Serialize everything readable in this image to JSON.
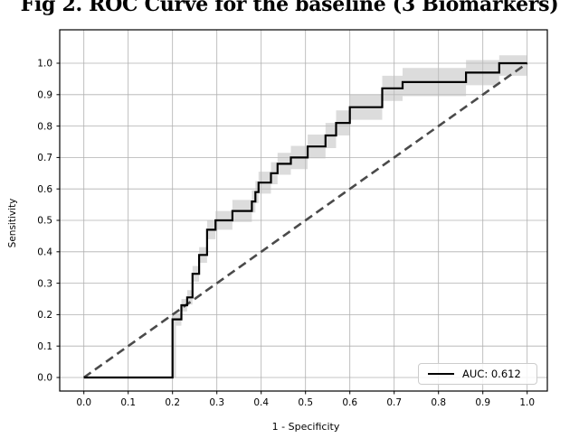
{
  "figure": {
    "title": "Fig 2. ROC Curve for the baseline (3 Biomarkers)"
  },
  "axes": {
    "xlabel": "1 - Specificity",
    "ylabel": "Sensitivity",
    "xtick_labels": [
      "0.0",
      "0.1",
      "0.2",
      "0.3",
      "0.4",
      "0.5",
      "0.6",
      "0.7",
      "0.8",
      "0.9",
      "1.0"
    ],
    "ytick_labels": [
      "0.0",
      "0.1",
      "0.2",
      "0.3",
      "0.4",
      "0.5",
      "0.6",
      "0.7",
      "0.8",
      "0.9",
      "1.0"
    ]
  },
  "legend": {
    "auc_label": "AUC: 0.612"
  },
  "colors": {
    "curve": "#000000",
    "band": "#c0c0c0",
    "diagonal": "#4a4a4a",
    "grid": "#b0b0b0",
    "spine": "#000000"
  },
  "chart_data": {
    "type": "line",
    "subtype": "roc-step-curve",
    "title": "Fig 2. ROC Curve for the baseline (3 Biomarkers)",
    "xlabel": "1 - Specificity",
    "ylabel": "Sensitivity",
    "xlim": [
      -0.055,
      1.045
    ],
    "ylim": [
      -0.043,
      1.105
    ],
    "grid": true,
    "legend_position": "lower right",
    "auc": 0.612,
    "xticks": [
      0,
      0.1,
      0.2,
      0.3,
      0.4,
      0.5,
      0.6,
      0.7,
      0.8,
      0.9,
      1.0
    ],
    "yticks": [
      0,
      0.1,
      0.2,
      0.3,
      0.4,
      0.5,
      0.6,
      0.7,
      0.8,
      0.9,
      1.0
    ],
    "series": [
      {
        "name": "AUC: 0.612",
        "style": "step",
        "color": "#000000",
        "points": [
          [
            0,
            0
          ],
          [
            0.2,
            0
          ],
          [
            0.2,
            0.185
          ],
          [
            0.22,
            0.185
          ],
          [
            0.22,
            0.23
          ],
          [
            0.233,
            0.23
          ],
          [
            0.233,
            0.255
          ],
          [
            0.245,
            0.255
          ],
          [
            0.245,
            0.33
          ],
          [
            0.26,
            0.33
          ],
          [
            0.26,
            0.39
          ],
          [
            0.278,
            0.39
          ],
          [
            0.278,
            0.47
          ],
          [
            0.297,
            0.47
          ],
          [
            0.297,
            0.5
          ],
          [
            0.335,
            0.5
          ],
          [
            0.335,
            0.53
          ],
          [
            0.379,
            0.53
          ],
          [
            0.379,
            0.56
          ],
          [
            0.387,
            0.56
          ],
          [
            0.387,
            0.59
          ],
          [
            0.394,
            0.59
          ],
          [
            0.394,
            0.62
          ],
          [
            0.422,
            0.62
          ],
          [
            0.422,
            0.65
          ],
          [
            0.437,
            0.65
          ],
          [
            0.437,
            0.68
          ],
          [
            0.467,
            0.68
          ],
          [
            0.467,
            0.7
          ],
          [
            0.505,
            0.7
          ],
          [
            0.505,
            0.735
          ],
          [
            0.545,
            0.735
          ],
          [
            0.545,
            0.77
          ],
          [
            0.569,
            0.77
          ],
          [
            0.569,
            0.81
          ],
          [
            0.6,
            0.81
          ],
          [
            0.6,
            0.86
          ],
          [
            0.673,
            0.86
          ],
          [
            0.673,
            0.92
          ],
          [
            0.719,
            0.92
          ],
          [
            0.719,
            0.94
          ],
          [
            0.862,
            0.94
          ],
          [
            0.862,
            0.97
          ],
          [
            0.937,
            0.97
          ],
          [
            0.937,
            1.0
          ],
          [
            1.0,
            1.0
          ]
        ]
      },
      {
        "name": "chance-diagonal",
        "style": "dashed",
        "color": "#4a4a4a",
        "points": [
          [
            0,
            0
          ],
          [
            1,
            1
          ]
        ]
      },
      {
        "name": "confidence-band",
        "style": "band",
        "color": "#c0c0c0",
        "opacity": 0.55,
        "upper": [
          [
            0.2,
            0
          ],
          [
            0.2,
            0.205
          ],
          [
            0.22,
            0.205
          ],
          [
            0.22,
            0.25
          ],
          [
            0.233,
            0.25
          ],
          [
            0.233,
            0.278
          ],
          [
            0.245,
            0.278
          ],
          [
            0.245,
            0.355
          ],
          [
            0.26,
            0.355
          ],
          [
            0.26,
            0.415
          ],
          [
            0.278,
            0.415
          ],
          [
            0.278,
            0.5
          ],
          [
            0.297,
            0.5
          ],
          [
            0.297,
            0.53
          ],
          [
            0.335,
            0.53
          ],
          [
            0.335,
            0.565
          ],
          [
            0.379,
            0.565
          ],
          [
            0.379,
            0.595
          ],
          [
            0.387,
            0.595
          ],
          [
            0.387,
            0.625
          ],
          [
            0.394,
            0.625
          ],
          [
            0.394,
            0.655
          ],
          [
            0.422,
            0.655
          ],
          [
            0.422,
            0.685
          ],
          [
            0.437,
            0.685
          ],
          [
            0.437,
            0.715
          ],
          [
            0.467,
            0.715
          ],
          [
            0.467,
            0.737
          ],
          [
            0.505,
            0.737
          ],
          [
            0.505,
            0.773
          ],
          [
            0.545,
            0.773
          ],
          [
            0.545,
            0.81
          ],
          [
            0.569,
            0.81
          ],
          [
            0.569,
            0.85
          ],
          [
            0.6,
            0.85
          ],
          [
            0.6,
            0.9
          ],
          [
            0.673,
            0.9
          ],
          [
            0.673,
            0.96
          ],
          [
            0.719,
            0.96
          ],
          [
            0.719,
            0.985
          ],
          [
            0.862,
            0.985
          ],
          [
            0.862,
            1.01
          ],
          [
            0.937,
            1.01
          ],
          [
            0.937,
            1.025
          ],
          [
            1.0,
            1.025
          ]
        ],
        "lower": [
          [
            0.208,
            0
          ],
          [
            0.208,
            0.165
          ],
          [
            0.22,
            0.165
          ],
          [
            0.22,
            0.21
          ],
          [
            0.233,
            0.21
          ],
          [
            0.233,
            0.232
          ],
          [
            0.245,
            0.232
          ],
          [
            0.245,
            0.305
          ],
          [
            0.26,
            0.305
          ],
          [
            0.26,
            0.365
          ],
          [
            0.278,
            0.365
          ],
          [
            0.278,
            0.44
          ],
          [
            0.297,
            0.44
          ],
          [
            0.297,
            0.47
          ],
          [
            0.335,
            0.47
          ],
          [
            0.335,
            0.495
          ],
          [
            0.379,
            0.495
          ],
          [
            0.379,
            0.525
          ],
          [
            0.387,
            0.525
          ],
          [
            0.387,
            0.555
          ],
          [
            0.394,
            0.555
          ],
          [
            0.394,
            0.585
          ],
          [
            0.422,
            0.585
          ],
          [
            0.422,
            0.615
          ],
          [
            0.437,
            0.615
          ],
          [
            0.437,
            0.645
          ],
          [
            0.467,
            0.645
          ],
          [
            0.467,
            0.663
          ],
          [
            0.505,
            0.663
          ],
          [
            0.505,
            0.697
          ],
          [
            0.545,
            0.697
          ],
          [
            0.545,
            0.73
          ],
          [
            0.569,
            0.73
          ],
          [
            0.569,
            0.77
          ],
          [
            0.6,
            0.77
          ],
          [
            0.6,
            0.82
          ],
          [
            0.673,
            0.82
          ],
          [
            0.673,
            0.88
          ],
          [
            0.719,
            0.88
          ],
          [
            0.719,
            0.895
          ],
          [
            0.862,
            0.895
          ],
          [
            0.862,
            0.93
          ],
          [
            0.937,
            0.93
          ],
          [
            0.937,
            0.96
          ],
          [
            1.0,
            0.96
          ]
        ]
      }
    ]
  }
}
